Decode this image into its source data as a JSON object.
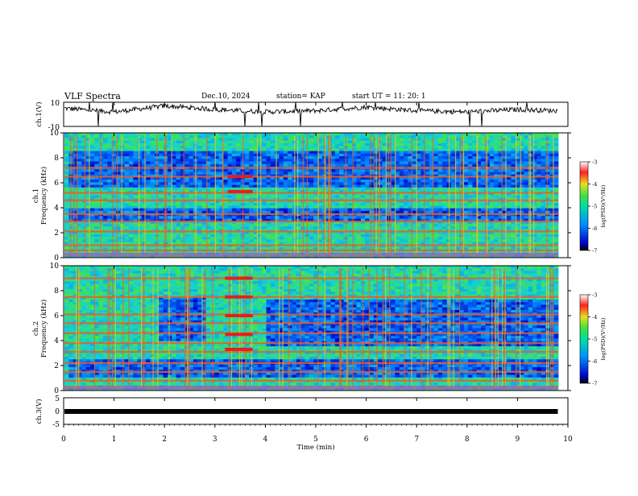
{
  "header": {
    "title": "VLF Spectra",
    "date": "Dec.10, 2024",
    "station": "station= KAP",
    "start": "start  UT  =   11: 20: 1"
  },
  "chart_data": [
    {
      "type": "line",
      "panel": "ch1-waveform",
      "ylabel": "ch.1(V)",
      "ylim": [
        -10,
        10
      ],
      "yticklabels": [
        "10",
        "-10"
      ],
      "xlim": [
        0,
        10
      ],
      "description_values_minutes": [
        0,
        1,
        2,
        3,
        4,
        5,
        6,
        7,
        8,
        9,
        9.8
      ],
      "y_approx": [
        5,
        2,
        7,
        4,
        2,
        3,
        6,
        3,
        2,
        4,
        3
      ]
    },
    {
      "type": "heatmap",
      "panel": "ch1-spectrogram",
      "ylabel": "ch.1\nFrequency (kHz)",
      "ylabel_line1": "ch.1",
      "ylabel_line2": "Frequency (kHz)",
      "yticks": [
        0,
        2,
        4,
        6,
        8,
        10
      ],
      "ylim": [
        0,
        10
      ],
      "xlim": [
        0,
        10
      ],
      "colorbar": {
        "label": "log(PSD)(V²/Hz)",
        "ticks": [
          -3,
          -4,
          -5,
          -6,
          -7
        ],
        "range": [
          -7,
          -3
        ]
      },
      "bands_khz": [
        0.6,
        1.0,
        2.1,
        2.9,
        3.5,
        4.6,
        5.2,
        6.5,
        7.2
      ]
    },
    {
      "type": "heatmap",
      "panel": "ch2-spectrogram",
      "ylabel": "ch.2\nFrequency (kHz)",
      "ylabel_line1": "ch.2",
      "ylabel_line2": "Frequency (kHz)",
      "yticks": [
        0,
        2,
        4,
        6,
        8,
        10
      ],
      "ylim": [
        0,
        10
      ],
      "xlim": [
        0,
        10
      ],
      "colorbar": {
        "label": "log(PSD)(V²/Hz)",
        "ticks": [
          -3,
          -4,
          -5,
          -6,
          -7
        ],
        "range": [
          -7,
          -3
        ]
      },
      "bands_khz": [
        0.8,
        1.5,
        2.2,
        3.1,
        3.8,
        4.6,
        5.4,
        6.1,
        7.5,
        9.0
      ]
    },
    {
      "type": "line",
      "panel": "ch3-signal",
      "ylabel": "ch.3(V)",
      "ylim": [
        -5,
        5
      ],
      "yticklabels": [
        "5",
        "0",
        "-5"
      ],
      "xlim": [
        0,
        9.8
      ],
      "value": 0
    }
  ],
  "xaxis": {
    "label": "Time  (min)",
    "ticks": [
      0,
      1,
      2,
      3,
      4,
      5,
      6,
      7,
      8,
      9,
      10
    ]
  },
  "colors": {
    "background_cyan": "#22d6c8",
    "background_green": "#39e05a",
    "low_blue": "#1a3fd8",
    "high_red": "#e02020",
    "yellow": "#e8e020"
  }
}
